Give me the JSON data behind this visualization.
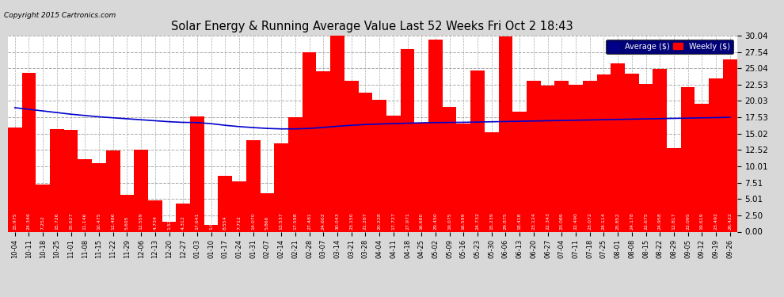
{
  "title": "Solar Energy & Running Average Value Last 52 Weeks Fri Oct 2 18:43",
  "copyright": "Copyright 2015 Cartronics.com",
  "bar_color": "#ff0000",
  "avg_line_color": "#0000cd",
  "background_color": "#d8d8d8",
  "plot_bg_color": "#ffffff",
  "ylim": [
    0,
    30.04
  ],
  "yticks": [
    0.0,
    2.5,
    5.01,
    7.51,
    10.01,
    12.52,
    15.02,
    17.53,
    20.03,
    22.53,
    25.04,
    27.54,
    30.04
  ],
  "legend_avg_color": "#00008b",
  "legend_weekly_color": "#ff0000",
  "dates": [
    "10-04",
    "10-11",
    "10-18",
    "10-25",
    "11-01",
    "11-08",
    "11-15",
    "11-22",
    "11-29",
    "12-06",
    "12-13",
    "12-20",
    "12-27",
    "01-03",
    "01-10",
    "01-17",
    "01-24",
    "01-31",
    "02-07",
    "02-14",
    "02-21",
    "02-28",
    "03-07",
    "03-14",
    "03-21",
    "03-28",
    "04-04",
    "04-11",
    "04-18",
    "04-25",
    "05-02",
    "05-09",
    "05-16",
    "05-23",
    "05-30",
    "06-06",
    "06-13",
    "06-20",
    "06-27",
    "07-04",
    "07-11",
    "07-18",
    "07-25",
    "08-01",
    "08-08",
    "08-15",
    "08-22",
    "08-29",
    "09-05",
    "09-12",
    "09-19",
    "09-26"
  ],
  "weekly_values": [
    15.975,
    24.346,
    7.252,
    15.726,
    15.627,
    11.146,
    10.475,
    12.486,
    5.605,
    12.559,
    4.734,
    1.529,
    4.312,
    17.641,
    1.006,
    8.554,
    7.712,
    14.07,
    5.866,
    13.537,
    17.598,
    27.481,
    24.602,
    30.043,
    23.15,
    21.287,
    20.228,
    17.727,
    27.971,
    16.68,
    29.45,
    19.075,
    16.599,
    24.732,
    15.239,
    29.875,
    18.418,
    23.124,
    22.343,
    23.089,
    22.49,
    23.072,
    24.114,
    25.852,
    24.178,
    22.675,
    24.958,
    12.817,
    22.095,
    19.619,
    23.492,
    26.422
  ],
  "avg_values": [
    19.0,
    18.75,
    18.5,
    18.25,
    18.0,
    17.8,
    17.6,
    17.45,
    17.3,
    17.15,
    17.0,
    16.85,
    16.75,
    16.72,
    16.55,
    16.3,
    16.1,
    15.95,
    15.82,
    15.75,
    15.75,
    15.82,
    15.97,
    16.15,
    16.3,
    16.42,
    16.5,
    16.56,
    16.62,
    16.68,
    16.72,
    16.74,
    16.76,
    16.8,
    16.84,
    16.88,
    16.92,
    16.96,
    17.0,
    17.04,
    17.08,
    17.12,
    17.16,
    17.2,
    17.24,
    17.28,
    17.32,
    17.36,
    17.4,
    17.44,
    17.48,
    17.52
  ]
}
